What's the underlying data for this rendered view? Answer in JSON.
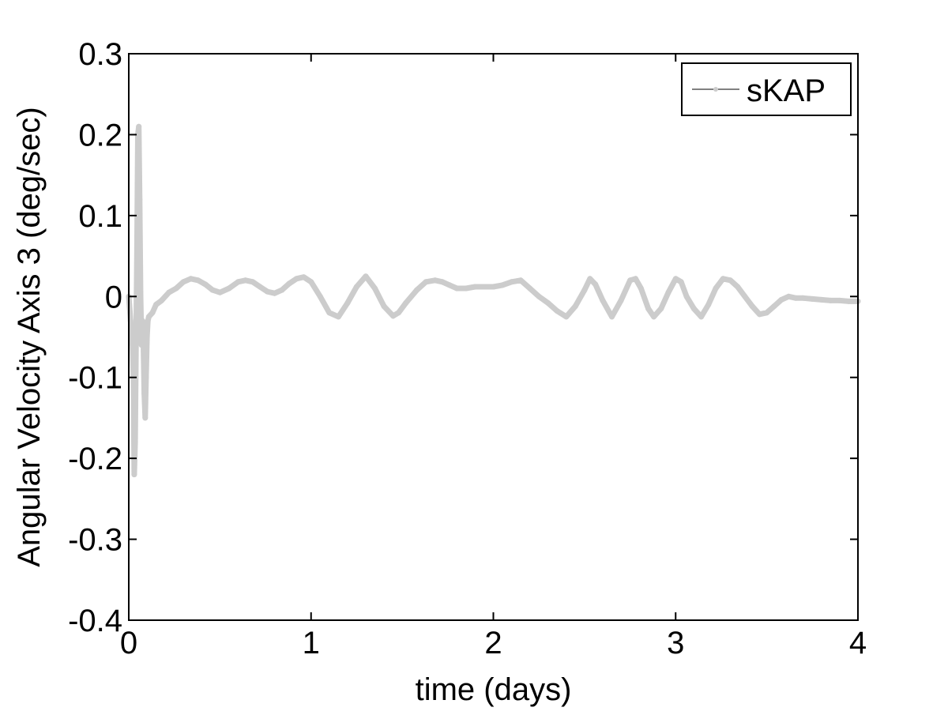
{
  "chart_data": {
    "type": "line",
    "title": "",
    "xlabel": "time (days)",
    "ylabel": "Angular Velocity Axis 3 (deg/sec)",
    "xlim": [
      0,
      4
    ],
    "ylim": [
      -0.4,
      0.3
    ],
    "xticks": [
      0,
      1,
      2,
      3,
      4
    ],
    "xtick_labels": [
      "0",
      "1",
      "2",
      "3",
      "4"
    ],
    "yticks": [
      -0.4,
      -0.3,
      -0.2,
      -0.1,
      0,
      0.1,
      0.2,
      0.3
    ],
    "ytick_labels": [
      "-0.4",
      "-0.3",
      "-0.2",
      "-0.1",
      "0",
      "0.1",
      "0.2",
      "0.3"
    ],
    "grid": false,
    "legend_position": "top-right",
    "series": [
      {
        "name": "sKAP",
        "color": "#cccccc",
        "marker": "dot",
        "x": [
          0.0,
          0.01,
          0.02,
          0.025,
          0.03,
          0.035,
          0.04,
          0.045,
          0.05,
          0.055,
          0.06,
          0.065,
          0.07,
          0.075,
          0.08,
          0.085,
          0.09,
          0.095,
          0.1,
          0.105,
          0.11,
          0.13,
          0.15,
          0.18,
          0.22,
          0.26,
          0.3,
          0.34,
          0.38,
          0.42,
          0.46,
          0.5,
          0.55,
          0.6,
          0.64,
          0.68,
          0.72,
          0.76,
          0.8,
          0.84,
          0.88,
          0.92,
          0.96,
          1.0,
          1.05,
          1.1,
          1.15,
          1.2,
          1.25,
          1.3,
          1.35,
          1.4,
          1.45,
          1.48,
          1.52,
          1.58,
          1.63,
          1.68,
          1.72,
          1.76,
          1.8,
          1.85,
          1.9,
          2.0,
          2.05,
          2.1,
          2.15,
          2.2,
          2.25,
          2.3,
          2.35,
          2.4,
          2.45,
          2.5,
          2.53,
          2.56,
          2.6,
          2.65,
          2.7,
          2.75,
          2.78,
          2.81,
          2.85,
          2.88,
          2.92,
          2.96,
          3.0,
          3.03,
          3.06,
          3.1,
          3.14,
          3.18,
          3.22,
          3.26,
          3.3,
          3.34,
          3.38,
          3.42,
          3.46,
          3.5,
          3.54,
          3.58,
          3.62,
          3.66,
          3.7,
          3.75,
          3.8,
          3.85,
          3.9,
          3.95,
          4.0
        ],
        "y": [
          0.0,
          -0.03,
          -0.06,
          -0.1,
          -0.22,
          -0.18,
          -0.06,
          0.06,
          0.2,
          0.21,
          0.12,
          0.0,
          -0.06,
          -0.03,
          -0.06,
          -0.12,
          -0.15,
          -0.1,
          -0.05,
          -0.03,
          -0.025,
          -0.02,
          -0.01,
          -0.005,
          0.005,
          0.01,
          0.018,
          0.022,
          0.02,
          0.015,
          0.008,
          0.005,
          0.01,
          0.018,
          0.02,
          0.018,
          0.012,
          0.006,
          0.004,
          0.008,
          0.016,
          0.022,
          0.024,
          0.018,
          0.0,
          -0.02,
          -0.025,
          -0.008,
          0.012,
          0.025,
          0.01,
          -0.012,
          -0.024,
          -0.02,
          -0.008,
          0.008,
          0.018,
          0.02,
          0.018,
          0.014,
          0.01,
          0.01,
          0.012,
          0.012,
          0.014,
          0.018,
          0.02,
          0.01,
          0.0,
          -0.008,
          -0.018,
          -0.025,
          -0.012,
          0.008,
          0.022,
          0.015,
          -0.005,
          -0.025,
          -0.005,
          0.02,
          0.022,
          0.01,
          -0.015,
          -0.025,
          -0.015,
          0.005,
          0.022,
          0.018,
          0.0,
          -0.015,
          -0.025,
          -0.01,
          0.01,
          0.022,
          0.02,
          0.012,
          0.0,
          -0.012,
          -0.022,
          -0.02,
          -0.012,
          -0.004,
          0.0,
          -0.002,
          -0.002,
          -0.003,
          -0.004,
          -0.005,
          -0.005,
          -0.006,
          -0.006
        ]
      }
    ]
  }
}
